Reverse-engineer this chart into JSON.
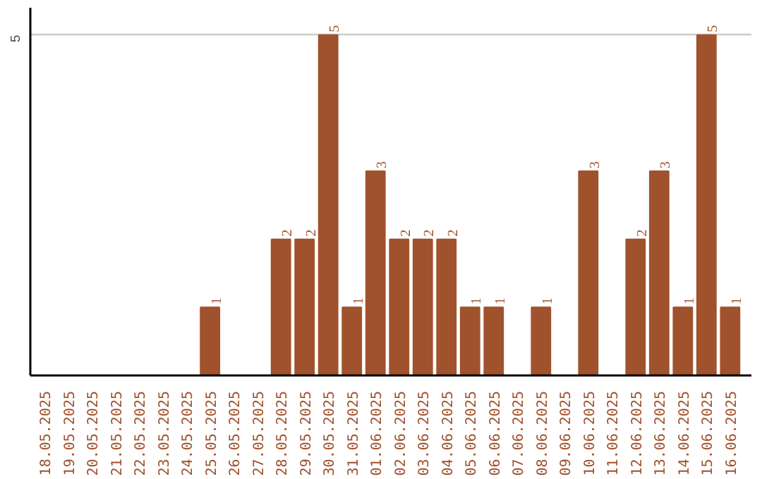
{
  "chart_data": {
    "type": "bar",
    "categories": [
      "18.05.2025",
      "19.05.2025",
      "20.05.2025",
      "21.05.2025",
      "22.05.2025",
      "23.05.2025",
      "24.05.2025",
      "25.05.2025",
      "26.05.2025",
      "27.05.2025",
      "28.05.2025",
      "29.05.2025",
      "30.05.2025",
      "31.05.2025",
      "01.06.2025",
      "02.06.2025",
      "03.06.2025",
      "04.06.2025",
      "05.06.2025",
      "06.06.2025",
      "07.06.2025",
      "08.06.2025",
      "09.06.2025",
      "10.06.2025",
      "11.06.2025",
      "12.06.2025",
      "13.06.2025",
      "14.06.2025",
      "15.06.2025",
      "16.06.2025"
    ],
    "values": [
      0,
      0,
      0,
      0,
      0,
      0,
      0,
      1,
      0,
      0,
      2,
      2,
      5,
      1,
      3,
      2,
      2,
      2,
      1,
      1,
      0,
      1,
      0,
      3,
      0,
      2,
      3,
      1,
      5,
      1
    ],
    "value_labels": [
      null,
      null,
      null,
      null,
      null,
      null,
      null,
      "1",
      null,
      null,
      "2",
      "2",
      "5",
      "1",
      "3",
      "2",
      "2",
      "2",
      "1",
      "1",
      null,
      "1",
      null,
      "3",
      null,
      "2",
      "3",
      "1",
      "5",
      "1"
    ],
    "color": "#a0522d",
    "ylim": [
      0,
      5.4
    ],
    "yticks": [
      5
    ],
    "grid": "y"
  }
}
